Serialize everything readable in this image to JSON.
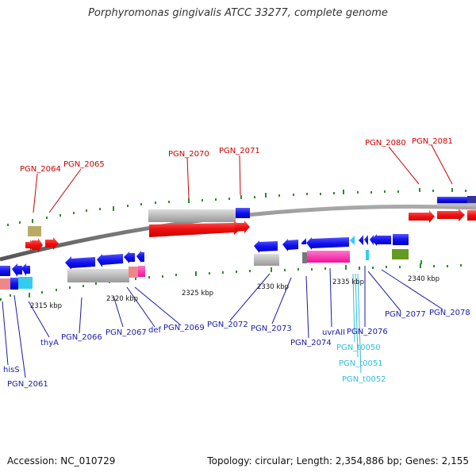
{
  "title": "Porphyromonas gingivalis ATCC 33277, complete genome",
  "footer": {
    "accession": "Accession: NC_010729",
    "summary": "Topology: circular; Length: 2,354,886 bp; Genes: 2,155"
  },
  "colors": {
    "backbone": "#888888",
    "tick": "#2e8b2e",
    "label_forward": "#cc0000",
    "label_reverse": "#1a1aa6",
    "label_trna": "#33bbdd",
    "cds_red": "#ee1111",
    "cds_blue": "#1111ee",
    "cds_gray": "#bbbbbb",
    "cds_pink": "#ff33aa",
    "cds_olive": "#669922",
    "cds_khaki": "#bbaa66",
    "cds_cyan": "#33ccee",
    "cds_salmon": "#ee8888"
  },
  "scale_labels": [
    "2315 kbp",
    "2320 kbp",
    "2325 kbp",
    "2330 kbp",
    "2335 kbp",
    "2340 kbp"
  ],
  "gene_labels_top": [
    "PGN_2064",
    "PGN_2065",
    "PGN_2070",
    "PGN_2071",
    "PGN_2080",
    "PGN_2081"
  ],
  "gene_labels_bottom": [
    "hisS",
    "PGN_2061",
    "thyA",
    "PGN_2066",
    "PGN_2067",
    "def",
    "PGN_2069",
    "PGN_2072",
    "PGN_2073",
    "PGN_2074",
    "uvrAII",
    "PGN_2076",
    "PGN_2077",
    "PGN_2078"
  ],
  "trna_labels": [
    "PGN_t0050",
    "PGN_t0051",
    "PGN_t0052"
  ]
}
